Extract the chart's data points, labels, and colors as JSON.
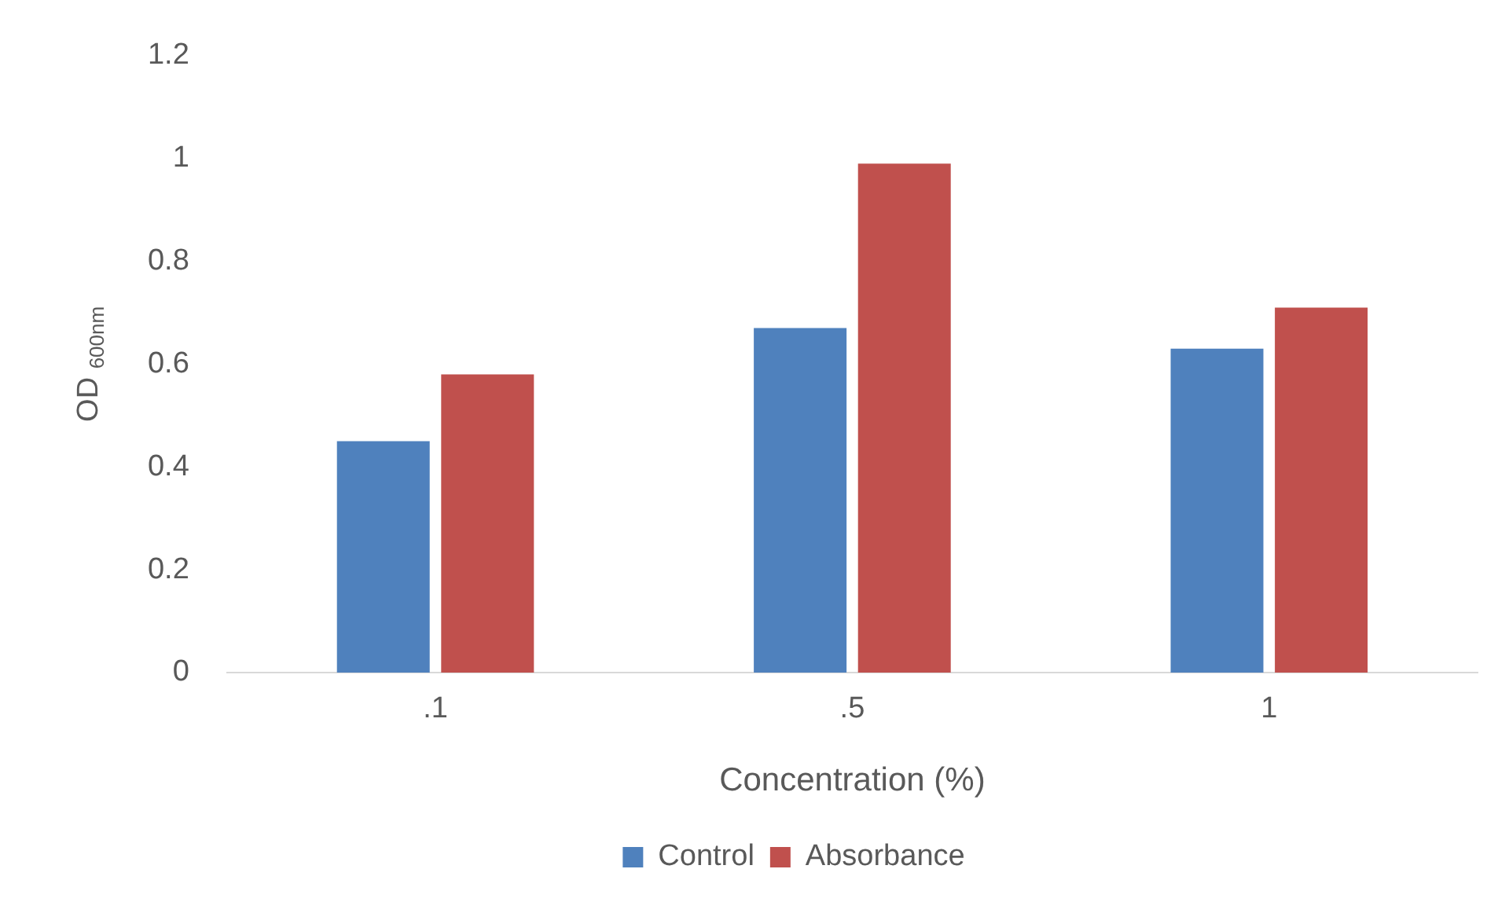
{
  "chart_data": {
    "type": "bar",
    "xlabel": "Concentration (%)",
    "ylabel": "OD $_{600nm}$",
    "categories": [
      ".1",
      ".5",
      "1"
    ],
    "series": [
      {
        "name": "Control",
        "color": "#4f81bd",
        "values": [
          0.45,
          0.67,
          0.63
        ]
      },
      {
        "name": "Absorbance",
        "color": "#c0504d",
        "values": [
          0.58,
          0.99,
          0.71
        ]
      }
    ],
    "ylim": [
      0,
      1.2
    ],
    "yticks": [
      0,
      0.2,
      0.4,
      0.6,
      0.8,
      1,
      1.2
    ],
    "grid": false,
    "legend": "bottom"
  }
}
